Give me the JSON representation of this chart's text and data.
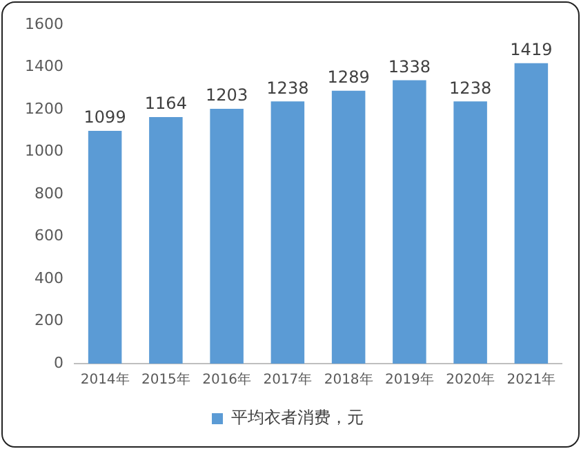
{
  "chart_data": {
    "type": "bar",
    "categories": [
      "2014年",
      "2015年",
      "2016年",
      "2017年",
      "2018年",
      "2019年",
      "2020年",
      "2021年"
    ],
    "series": [
      {
        "name": "平均衣者消费，元",
        "color": "#5b9bd5",
        "values": [
          1099,
          1164,
          1203,
          1238,
          1289,
          1338,
          1238,
          1419
        ]
      }
    ],
    "ylim": [
      0,
      1600
    ],
    "yticks": [
      0,
      200,
      400,
      600,
      800,
      1000,
      1200,
      1400,
      1600
    ],
    "grid": false,
    "legend": "bottom",
    "data_labels": true
  }
}
